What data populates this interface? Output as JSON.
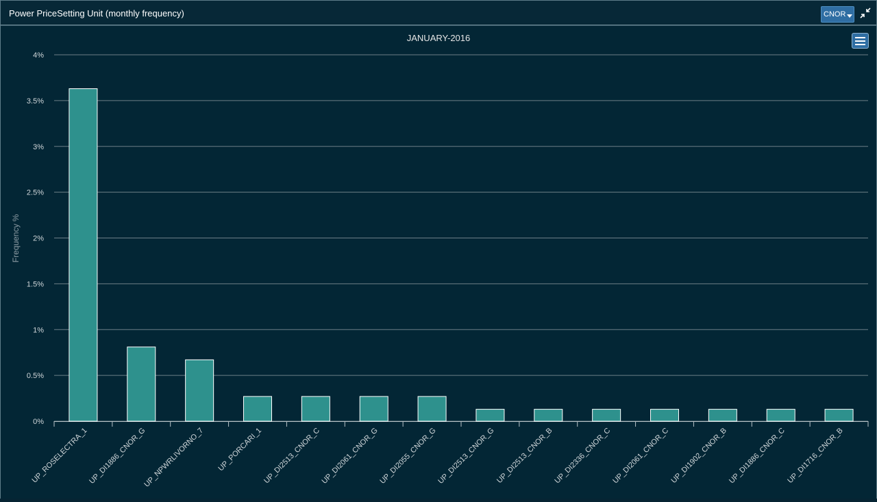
{
  "panel": {
    "title": "Power PriceSetting Unit (monthly frequency)",
    "region_value": "CNOR"
  },
  "icons": {
    "dropdown": "chevron-down-icon",
    "collapse": "collapse-arrows-icon",
    "menu": "hamburger-menu-icon"
  },
  "colors": {
    "background": "#032635",
    "bar_fill": "#2e918d",
    "bar_stroke": "#ffffff",
    "grid": "#6d7f87",
    "accent": "#2f6ea3"
  },
  "chart_data": {
    "type": "bar",
    "title": "JANUARY-2016",
    "xlabel": "",
    "ylabel": "Frequency %",
    "ylim": [
      0,
      4
    ],
    "yticks": [
      0,
      0.5,
      1,
      1.5,
      2,
      2.5,
      3,
      3.5,
      4
    ],
    "ytick_labels": [
      "0%",
      "0.5%",
      "1%",
      "1.5%",
      "2%",
      "2.5%",
      "3%",
      "3.5%",
      "4%"
    ],
    "grid": true,
    "legend": "none",
    "categories": [
      "UP_ROSELECTRA_1",
      "UP_DI1886_CNOR_G",
      "UP_NPWRLIVORNO_7",
      "UP_PORCARI_1",
      "UP_DI2513_CNOR_C",
      "UP_DI2061_CNOR_G",
      "UP_DI2055_CNOR_G",
      "UP_DI2513_CNOR_G",
      "UP_DI2513_CNOR_B",
      "UP_DI2336_CNOR_C",
      "UP_DI2061_CNOR_C",
      "UP_DI1902_CNOR_B",
      "UP_DI1886_CNOR_C",
      "UP_DI1716_CNOR_B"
    ],
    "values": [
      3.63,
      0.81,
      0.67,
      0.27,
      0.27,
      0.27,
      0.27,
      0.13,
      0.13,
      0.13,
      0.13,
      0.13,
      0.13,
      0.13
    ]
  }
}
